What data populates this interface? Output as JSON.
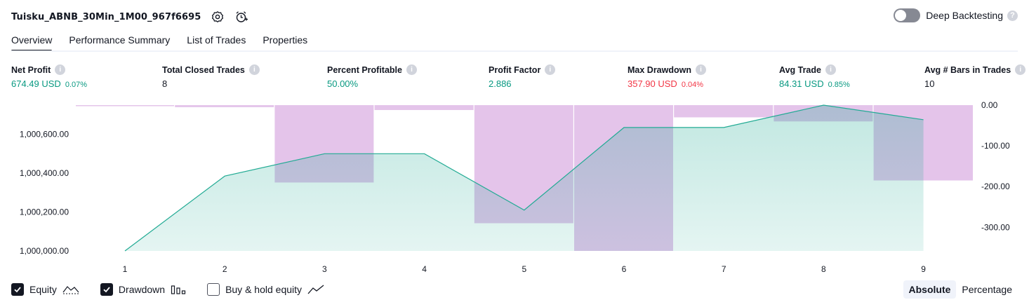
{
  "header": {
    "strategy_name": "Tuisku_ABNB_30Min_1M00_967f6695",
    "deep_backtesting_label": "Deep Backtesting",
    "help": "?"
  },
  "tabs": [
    {
      "label": "Overview"
    },
    {
      "label": "Performance Summary"
    },
    {
      "label": "List of Trades"
    },
    {
      "label": "Properties"
    }
  ],
  "metrics": {
    "info": "i",
    "net_profit": {
      "label": "Net Profit",
      "value": "674.49 USD",
      "pct": "0.07%"
    },
    "total_closed_trades": {
      "label": "Total Closed Trades",
      "value": "8"
    },
    "percent_profitable": {
      "label": "Percent Profitable",
      "value": "50.00%"
    },
    "profit_factor": {
      "label": "Profit Factor",
      "value": "2.886"
    },
    "max_drawdown": {
      "label": "Max Drawdown",
      "value": "357.90 USD",
      "pct": "0.04%"
    },
    "avg_trade": {
      "label": "Avg Trade",
      "value": "84.31 USD",
      "pct": "0.85%"
    },
    "avg_bars": {
      "label": "Avg # Bars in Trades",
      "value": "10"
    }
  },
  "colors": {
    "profit": "#089981",
    "loss": "#f23645",
    "equity_line": "#22ab94",
    "drawdown_bar": "#ce93d8"
  },
  "chart_data": {
    "type": "line",
    "x": [
      1,
      2,
      3,
      4,
      5,
      6,
      7,
      8,
      9
    ],
    "xticks": [
      "1",
      "2",
      "3",
      "4",
      "5",
      "6",
      "7",
      "8",
      "9"
    ],
    "series": [
      {
        "name": "Equity",
        "axis": "left",
        "type": "area",
        "values": [
          1000000,
          1000385,
          1000500,
          1000500,
          1000210,
          1000635,
          1000635,
          1000750,
          1000675
        ]
      },
      {
        "name": "Drawdown",
        "axis": "right",
        "type": "bar",
        "values": [
          -2,
          -5,
          -190,
          -12,
          -290,
          -358,
          -30,
          -40,
          -185
        ]
      }
    ],
    "left_axis": {
      "ticks": [
        "1,000,000.00",
        "1,000,200.00",
        "1,000,400.00",
        "1,000,600.00"
      ],
      "range": [
        1000000,
        1000750
      ]
    },
    "right_axis": {
      "ticks": [
        "0.00",
        "-100.00",
        "-200.00",
        "-300.00"
      ],
      "range": [
        -358,
        0
      ]
    }
  },
  "legend": {
    "equity": "Equity",
    "drawdown": "Drawdown",
    "buy_hold": "Buy & hold equity"
  },
  "mode": {
    "absolute": "Absolute",
    "percentage": "Percentage"
  }
}
